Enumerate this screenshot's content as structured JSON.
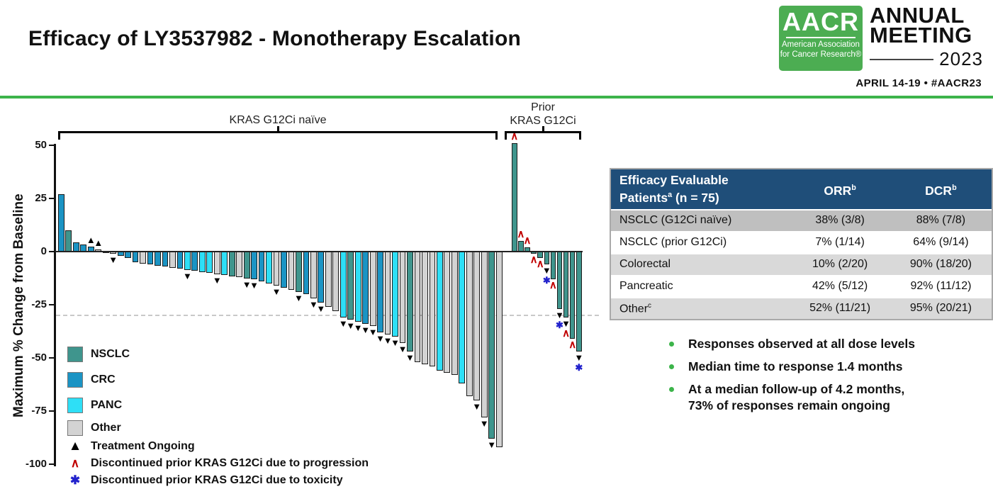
{
  "slide": {
    "title": "Efficacy of LY3537982 - Monotherapy Escalation"
  },
  "logo": {
    "acronym": "AACR",
    "org_line1": "American Association",
    "org_line2": "for Cancer Research®",
    "event_line1": "ANNUAL",
    "event_line2": "MEETING",
    "year": "2023",
    "dates": "APRIL 14-19 • #AACR23",
    "green": "#4CAD52"
  },
  "accent_green": "#3CB44A",
  "chart_data": {
    "type": "bar",
    "subtype": "waterfall",
    "ylabel": "Maximum % Change from Baseline",
    "yticks": [
      50,
      25,
      0,
      -25,
      -50,
      -75,
      -100
    ],
    "ylim": [
      -100,
      55
    ],
    "reference_line_y": -30,
    "grid": false,
    "colors": {
      "NSCLC": "#3F958D",
      "CRC": "#1B94C4",
      "PANC": "#2EDFF6",
      "Other": "#D3D3D3"
    },
    "marker_colors": {
      "ongoing": "#000000",
      "progression": "#C00000",
      "toxicity": "#2121CC"
    },
    "groups": [
      {
        "label": "KRAS G12Ci naïve",
        "bars": [
          {
            "v": 27,
            "c": "CRC"
          },
          {
            "v": 10,
            "c": "NSCLC"
          },
          {
            "v": 4.5,
            "c": "CRC"
          },
          {
            "v": 3.5,
            "c": "CRC"
          },
          {
            "v": 2.5,
            "c": "CRC",
            "m": [
              "ongoing"
            ]
          },
          {
            "v": 1,
            "c": "Other",
            "m": [
              "ongoing"
            ]
          },
          {
            "v": -0.5,
            "c": "NSCLC"
          },
          {
            "v": -1,
            "c": "Other",
            "m": [
              "ongoing"
            ]
          },
          {
            "v": -2,
            "c": "CRC"
          },
          {
            "v": -3,
            "c": "CRC"
          },
          {
            "v": -5,
            "c": "CRC"
          },
          {
            "v": -5.5,
            "c": "Other"
          },
          {
            "v": -6,
            "c": "CRC"
          },
          {
            "v": -6.5,
            "c": "CRC"
          },
          {
            "v": -7,
            "c": "CRC"
          },
          {
            "v": -7.5,
            "c": "Other"
          },
          {
            "v": -8,
            "c": "CRC"
          },
          {
            "v": -8.5,
            "c": "PANC",
            "m": [
              "ongoing"
            ]
          },
          {
            "v": -9,
            "c": "CRC"
          },
          {
            "v": -9.5,
            "c": "PANC"
          },
          {
            "v": -10,
            "c": "PANC"
          },
          {
            "v": -10.5,
            "c": "Other",
            "m": [
              "ongoing"
            ]
          },
          {
            "v": -11,
            "c": "PANC"
          },
          {
            "v": -11.5,
            "c": "NSCLC"
          },
          {
            "v": -12,
            "c": "Other"
          },
          {
            "v": -12.5,
            "c": "NSCLC",
            "m": [
              "ongoing"
            ]
          },
          {
            "v": -13,
            "c": "CRC",
            "m": [
              "ongoing"
            ]
          },
          {
            "v": -14,
            "c": "CRC"
          },
          {
            "v": -15,
            "c": "PANC"
          },
          {
            "v": -16,
            "c": "Other",
            "m": [
              "ongoing"
            ]
          },
          {
            "v": -17,
            "c": "CRC"
          },
          {
            "v": -18,
            "c": "Other"
          },
          {
            "v": -19,
            "c": "NSCLC",
            "m": [
              "ongoing"
            ]
          },
          {
            "v": -20,
            "c": "CRC"
          },
          {
            "v": -22,
            "c": "Other",
            "m": [
              "ongoing"
            ]
          },
          {
            "v": -24,
            "c": "CRC",
            "m": [
              "ongoing"
            ]
          },
          {
            "v": -26,
            "c": "Other"
          },
          {
            "v": -28,
            "c": "Other"
          },
          {
            "v": -31,
            "c": "PANC",
            "m": [
              "ongoing"
            ]
          },
          {
            "v": -32,
            "c": "NSCLC",
            "m": [
              "ongoing"
            ]
          },
          {
            "v": -33,
            "c": "PANC",
            "m": [
              "ongoing"
            ]
          },
          {
            "v": -34,
            "c": "CRC",
            "m": [
              "ongoing"
            ]
          },
          {
            "v": -35,
            "c": "Other",
            "m": [
              "ongoing"
            ]
          },
          {
            "v": -38,
            "c": "CRC",
            "m": [
              "ongoing"
            ]
          },
          {
            "v": -39,
            "c": "Other",
            "m": [
              "ongoing"
            ]
          },
          {
            "v": -40,
            "c": "PANC",
            "m": [
              "ongoing"
            ]
          },
          {
            "v": -43,
            "c": "Other",
            "m": [
              "ongoing"
            ]
          },
          {
            "v": -47,
            "c": "NSCLC",
            "m": [
              "ongoing"
            ]
          },
          {
            "v": -52,
            "c": "Other"
          },
          {
            "v": -53,
            "c": "Other"
          },
          {
            "v": -54,
            "c": "Other"
          },
          {
            "v": -56,
            "c": "PANC"
          },
          {
            "v": -57,
            "c": "Other"
          },
          {
            "v": -58,
            "c": "Other"
          },
          {
            "v": -62,
            "c": "PANC"
          },
          {
            "v": -68,
            "c": "Other"
          },
          {
            "v": -70,
            "c": "Other",
            "m": [
              "ongoing"
            ]
          },
          {
            "v": -78,
            "c": "Other",
            "m": [
              "ongoing"
            ]
          },
          {
            "v": -88,
            "c": "NSCLC",
            "m": [
              "ongoing"
            ]
          },
          {
            "v": -92,
            "c": "Other"
          }
        ]
      },
      {
        "label": "Prior KRAS G12Ci",
        "label_lines": [
          "Prior",
          "KRAS G12Ci"
        ],
        "bars": [
          {
            "v": 51,
            "c": "NSCLC",
            "m": [
              "progression"
            ]
          },
          {
            "v": 5,
            "c": "NSCLC",
            "m": [
              "progression"
            ]
          },
          {
            "v": 2,
            "c": "NSCLC",
            "m": [
              "progression"
            ]
          },
          {
            "v": -1,
            "c": "NSCLC",
            "m": [
              "progression"
            ]
          },
          {
            "v": -3,
            "c": "NSCLC",
            "m": [
              "progression"
            ]
          },
          {
            "v": -6,
            "c": "NSCLC",
            "m": [
              "ongoing",
              "toxicity"
            ]
          },
          {
            "v": -13,
            "c": "NSCLC",
            "m": [
              "progression"
            ]
          },
          {
            "v": -27,
            "c": "NSCLC",
            "m": [
              "ongoing",
              "toxicity"
            ]
          },
          {
            "v": -31,
            "c": "NSCLC",
            "m": [
              "ongoing",
              "progression"
            ]
          },
          {
            "v": -41,
            "c": "NSCLC",
            "m": [
              "progression"
            ]
          },
          {
            "v": -47,
            "c": "NSCLC",
            "m": [
              "ongoing",
              "toxicity"
            ]
          }
        ]
      }
    ],
    "legend": [
      {
        "kind": "color",
        "key": "NSCLC",
        "label": "NSCLC"
      },
      {
        "kind": "color",
        "key": "CRC",
        "label": "CRC"
      },
      {
        "kind": "color",
        "key": "PANC",
        "label": "PANC"
      },
      {
        "kind": "color",
        "key": "Other",
        "label": "Other"
      },
      {
        "kind": "marker",
        "key": "ongoing",
        "glyph": "▲",
        "label": "Treatment Ongoing"
      },
      {
        "kind": "marker",
        "key": "progression",
        "glyph": "∧",
        "label": "Discontinued prior KRAS G12Ci due to progression"
      },
      {
        "kind": "marker",
        "key": "toxicity",
        "glyph": "✱",
        "label": "Discontinued prior KRAS G12Ci due to toxicity"
      }
    ]
  },
  "table": {
    "header": [
      {
        "t": "Efficacy Evaluable Patients",
        "s": "a",
        "r": " (n = 75)"
      },
      {
        "t": "ORR",
        "s": "b"
      },
      {
        "t": "DCR",
        "s": "b"
      }
    ],
    "header_bg": "#1F4E79",
    "rows": [
      {
        "bg": "#BFBFBF",
        "cells": [
          {
            "t": "NSCLC (G12Ci naïve)"
          },
          {
            "t": "38% (3/8)"
          },
          {
            "t": "88% (7/8)"
          }
        ]
      },
      {
        "bg": "#FFFFFF",
        "cells": [
          {
            "t": "NSCLC (prior G12Ci)"
          },
          {
            "t": "7% (1/14)"
          },
          {
            "t": "64% (9/14)"
          }
        ]
      },
      {
        "bg": "#D9D9D9",
        "cells": [
          {
            "t": "Colorectal"
          },
          {
            "t": "10% (2/20)"
          },
          {
            "t": "90% (18/20)"
          }
        ]
      },
      {
        "bg": "#FFFFFF",
        "cells": [
          {
            "t": "Pancreatic"
          },
          {
            "t": "42% (5/12)"
          },
          {
            "t": "92% (11/12)"
          }
        ]
      },
      {
        "bg": "#D9D9D9",
        "cells": [
          {
            "t": "Other",
            "s": "c"
          },
          {
            "t": "52% (11/21)"
          },
          {
            "t": "95% (20/21)"
          }
        ]
      }
    ]
  },
  "bullets": [
    {
      "lines": [
        "Responses observed at all dose levels"
      ]
    },
    {
      "lines": [
        "Median time to response 1.4 months"
      ]
    },
    {
      "lines": [
        "At a median follow-up of 4.2 months,",
        "73% of responses remain ongoing"
      ]
    }
  ]
}
